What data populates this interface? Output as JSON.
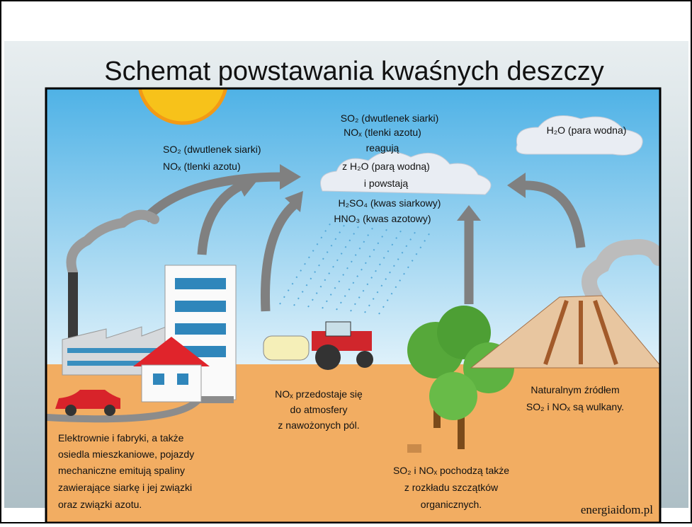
{
  "title": "Schemat powstawania kwaśnych deszczy",
  "diagram": {
    "emissions_label": [
      "SO₂ (dwutlenek siarki)",
      "NOₓ (tlenki azotu)"
    ],
    "cloud_label": [
      "SO₂ (dwutlenek siarki)",
      "NOₓ (tlenki azotu)",
      "reagują",
      "z H₂O (parą wodną)",
      "i powstają",
      "H₂SO₄ (kwas siarkowy)",
      "HNO₃ (kwas azotowy)"
    ],
    "vapor_label": "H₂O (para wodna)",
    "fields_label": [
      "NOₓ przedostaje się",
      "do atmosfery",
      "z nawożonych pól."
    ],
    "volcano_label": [
      "Naturalnym źródłem",
      "SO₂ i NOₓ są wulkany."
    ],
    "industry_label": [
      "Elektrownie i fabryki, a także",
      "osiedla mieszkaniowe, pojazdy",
      "mechaniczne emitują spaliny",
      "zawierające siarkę i jej związki",
      "oraz związki azotu."
    ],
    "decay_label": [
      "SO₂ i NOₓ pochodzą także",
      "z rozkładu szczątków",
      "organicznych."
    ],
    "source": "energiaidom.pl"
  }
}
